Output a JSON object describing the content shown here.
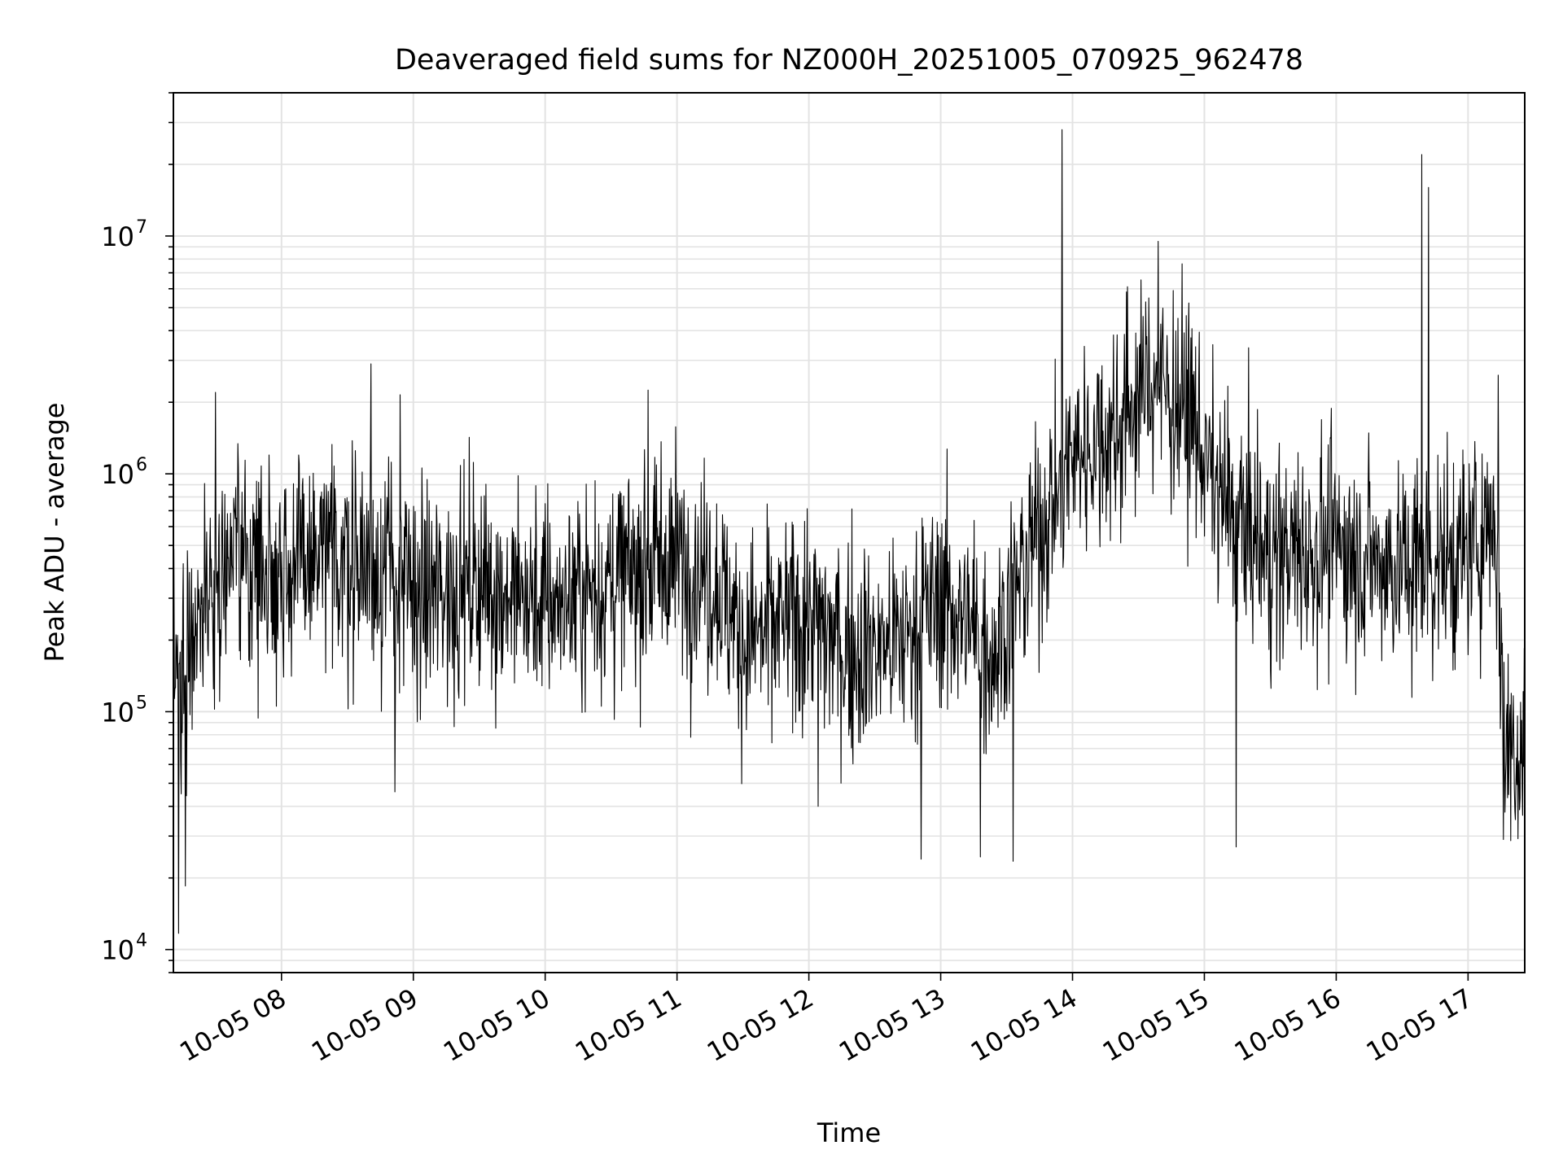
{
  "chart_data": {
    "type": "line",
    "title": "Deaveraged field sums for NZ000H_20251005_070925_962478",
    "xlabel": "Time",
    "ylabel": "Peak ADU - average",
    "yscale": "log",
    "ylim": [
      8000,
      40000000
    ],
    "xlim_hours": [
      7.18,
      17.43
    ],
    "grid": true,
    "x_tick_hours": [
      8,
      9,
      10,
      11,
      12,
      13,
      14,
      15,
      16,
      17
    ],
    "x_tick_labels": [
      "10-05 08",
      "10-05 09",
      "10-05 10",
      "10-05 11",
      "10-05 12",
      "10-05 13",
      "10-05 14",
      "10-05 15",
      "10-05 16",
      "10-05 17"
    ],
    "y_ticks": [
      {
        "base": "10",
        "exp": "4",
        "value": 10000
      },
      {
        "base": "10",
        "exp": "5",
        "value": 100000
      },
      {
        "base": "10",
        "exp": "6",
        "value": 1000000
      },
      {
        "base": "10",
        "exp": "7",
        "value": 10000000
      }
    ],
    "series": [
      {
        "name": "Peak ADU - average",
        "color": "#000000",
        "baseline": [
          {
            "t": 7.18,
            "v": 120000
          },
          {
            "t": 7.35,
            "v": 250000
          },
          {
            "t": 7.6,
            "v": 450000
          },
          {
            "t": 8.0,
            "v": 400000
          },
          {
            "t": 8.5,
            "v": 450000
          },
          {
            "t": 8.8,
            "v": 400000
          },
          {
            "t": 9.0,
            "v": 300000
          },
          {
            "t": 9.5,
            "v": 350000
          },
          {
            "t": 10.0,
            "v": 280000
          },
          {
            "t": 10.5,
            "v": 350000
          },
          {
            "t": 11.0,
            "v": 450000
          },
          {
            "t": 11.3,
            "v": 350000
          },
          {
            "t": 11.5,
            "v": 200000
          },
          {
            "t": 12.0,
            "v": 250000
          },
          {
            "t": 12.3,
            "v": 180000
          },
          {
            "t": 12.7,
            "v": 200000
          },
          {
            "t": 13.0,
            "v": 300000
          },
          {
            "t": 13.4,
            "v": 180000
          },
          {
            "t": 13.7,
            "v": 500000
          },
          {
            "t": 14.0,
            "v": 1200000
          },
          {
            "t": 14.3,
            "v": 1500000
          },
          {
            "t": 14.6,
            "v": 2500000
          },
          {
            "t": 14.9,
            "v": 1800000
          },
          {
            "t": 15.1,
            "v": 800000
          },
          {
            "t": 15.5,
            "v": 450000
          },
          {
            "t": 16.0,
            "v": 500000
          },
          {
            "t": 16.5,
            "v": 400000
          },
          {
            "t": 17.0,
            "v": 450000
          },
          {
            "t": 17.2,
            "v": 700000
          },
          {
            "t": 17.28,
            "v": 80000
          },
          {
            "t": 17.43,
            "v": 65000
          }
        ],
        "spikes": [
          {
            "t": 7.22,
            "v": 11700
          },
          {
            "t": 7.27,
            "v": 18500
          },
          {
            "t": 7.5,
            "v": 2200000
          },
          {
            "t": 8.68,
            "v": 2900000
          },
          {
            "t": 8.86,
            "v": 46000
          },
          {
            "t": 8.9,
            "v": 2150000
          },
          {
            "t": 10.78,
            "v": 2250000
          },
          {
            "t": 12.07,
            "v": 40000
          },
          {
            "t": 12.85,
            "v": 24000
          },
          {
            "t": 13.3,
            "v": 24500
          },
          {
            "t": 13.55,
            "v": 23500
          },
          {
            "t": 13.92,
            "v": 28000000
          },
          {
            "t": 14.65,
            "v": 9500000
          },
          {
            "t": 15.24,
            "v": 27000
          },
          {
            "t": 16.65,
            "v": 22000000
          },
          {
            "t": 16.7,
            "v": 16000000
          },
          {
            "t": 17.23,
            "v": 2600000
          },
          {
            "t": 17.27,
            "v": 29000
          }
        ]
      }
    ]
  }
}
